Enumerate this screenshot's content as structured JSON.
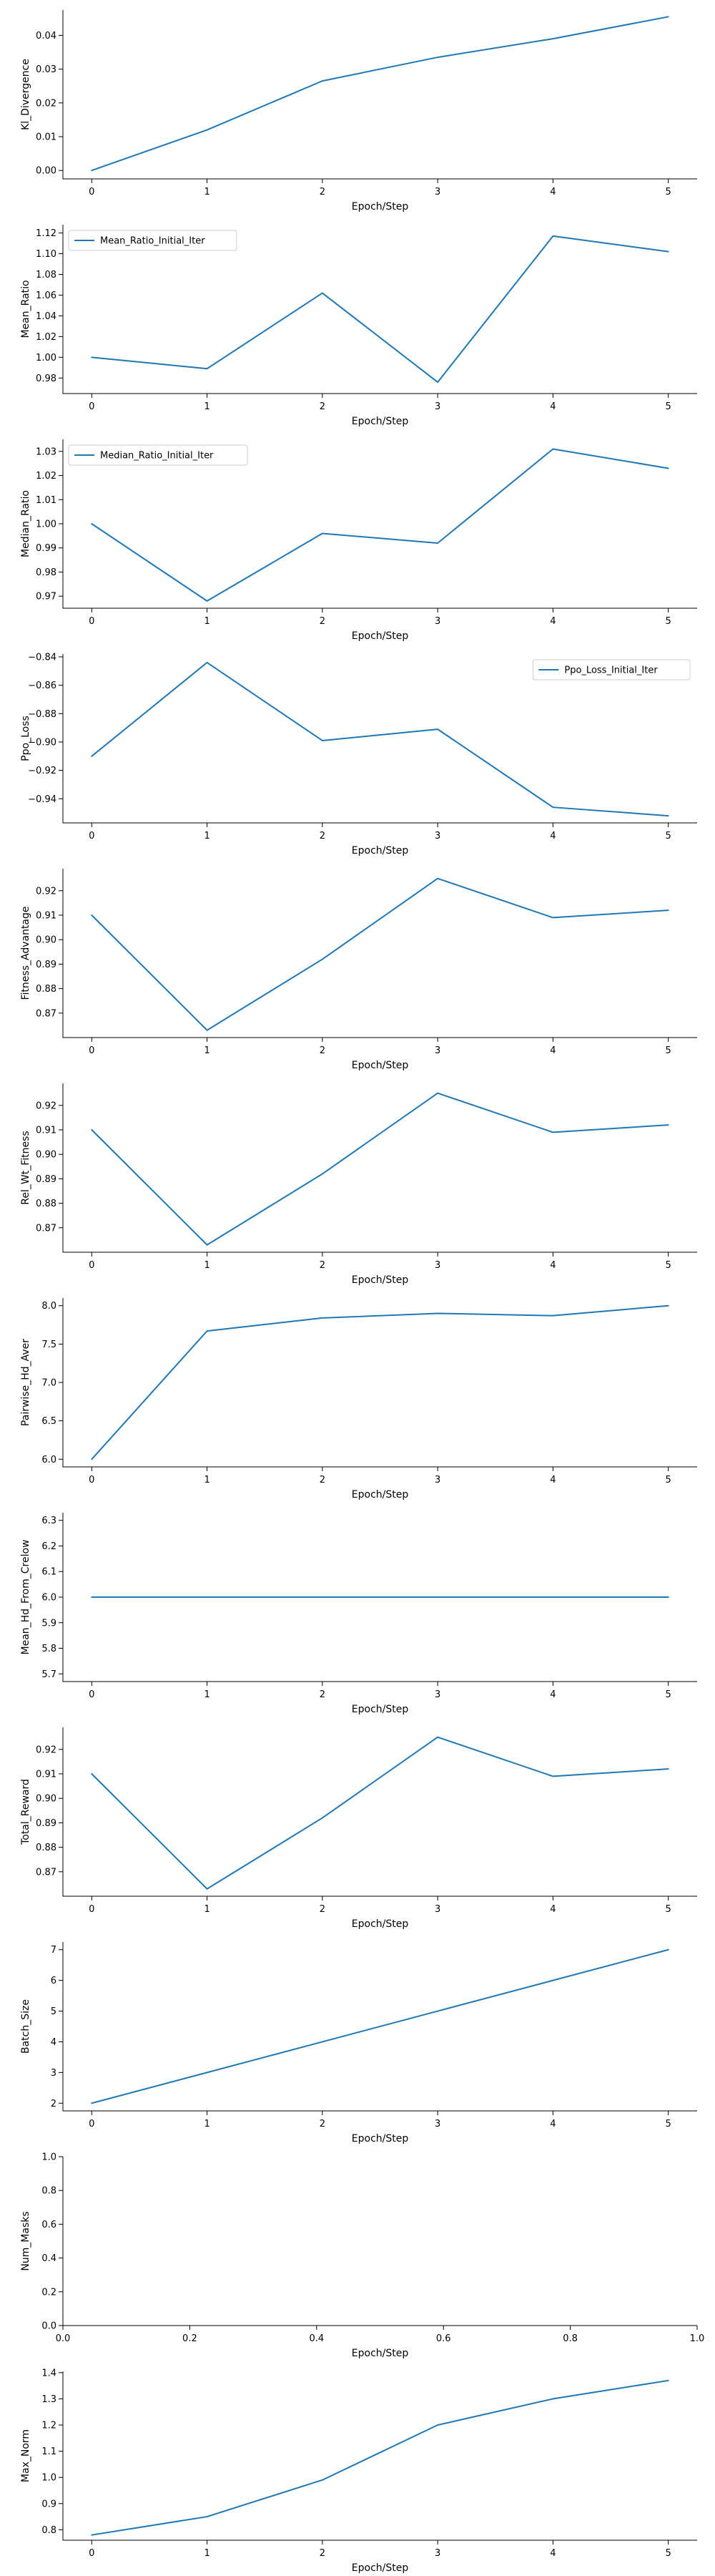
{
  "chart_data": [
    {
      "type": "line",
      "xlabel": "Epoch/Step",
      "ylabel": "Kl_Divergence",
      "x": [
        0,
        1,
        2,
        3,
        4,
        5
      ],
      "xlim": [
        -0.25,
        5.25
      ],
      "ylim": [
        -0.0025,
        0.0475
      ],
      "yticks": [
        "0.00",
        "0.01",
        "0.02",
        "0.03",
        "0.04"
      ],
      "ytick_values": [
        0,
        0.01,
        0.02,
        0.03,
        0.04
      ],
      "series": [
        {
          "name": "",
          "values": [
            0.0,
            0.012,
            0.0265,
            0.0335,
            0.039,
            0.0455
          ]
        }
      ],
      "legend": null
    },
    {
      "type": "line",
      "xlabel": "Epoch/Step",
      "ylabel": "Mean_Ratio",
      "x": [
        0,
        1,
        2,
        3,
        4,
        5
      ],
      "xlim": [
        -0.25,
        5.25
      ],
      "ylim": [
        0.965,
        1.128
      ],
      "yticks": [
        "0.98",
        "1.00",
        "1.02",
        "1.04",
        "1.06",
        "1.08",
        "1.10",
        "1.12"
      ],
      "ytick_values": [
        0.98,
        1.0,
        1.02,
        1.04,
        1.06,
        1.08,
        1.1,
        1.12
      ],
      "series": [
        {
          "name": "Mean_Ratio_Initial_Iter",
          "values": [
            1.0,
            0.989,
            1.062,
            0.976,
            1.117,
            1.102
          ]
        }
      ],
      "legend": "top-left"
    },
    {
      "type": "line",
      "xlabel": "Epoch/Step",
      "ylabel": "Median_Ratio",
      "x": [
        0,
        1,
        2,
        3,
        4,
        5
      ],
      "xlim": [
        -0.25,
        5.25
      ],
      "ylim": [
        0.965,
        1.035
      ],
      "yticks": [
        "0.97",
        "0.98",
        "0.99",
        "1.00",
        "1.01",
        "1.02",
        "1.03"
      ],
      "ytick_values": [
        0.97,
        0.98,
        0.99,
        1.0,
        1.01,
        1.02,
        1.03
      ],
      "series": [
        {
          "name": "Median_Ratio_Initial_Iter",
          "values": [
            1.0,
            0.968,
            0.996,
            0.992,
            1.031,
            1.023
          ]
        }
      ],
      "legend": "top-left"
    },
    {
      "type": "line",
      "xlabel": "Epoch/Step",
      "ylabel": "Ppo_Loss",
      "x": [
        0,
        1,
        2,
        3,
        4,
        5
      ],
      "xlim": [
        -0.25,
        5.25
      ],
      "ylim": [
        -0.957,
        -0.838
      ],
      "yticks": [
        "−0.94",
        "−0.92",
        "−0.90",
        "−0.88",
        "−0.86",
        "−0.84"
      ],
      "ytick_values": [
        -0.94,
        -0.92,
        -0.9,
        -0.88,
        -0.86,
        -0.84
      ],
      "series": [
        {
          "name": "Ppo_Loss_Initial_Iter",
          "values": [
            -0.91,
            -0.844,
            -0.899,
            -0.891,
            -0.946,
            -0.952
          ]
        }
      ],
      "legend": "top-right"
    },
    {
      "type": "line",
      "xlabel": "Epoch/Step",
      "ylabel": "Fitness_Advantage",
      "x": [
        0,
        1,
        2,
        3,
        4,
        5
      ],
      "xlim": [
        -0.25,
        5.25
      ],
      "ylim": [
        0.86,
        0.929
      ],
      "yticks": [
        "0.87",
        "0.88",
        "0.89",
        "0.90",
        "0.91",
        "0.92"
      ],
      "ytick_values": [
        0.87,
        0.88,
        0.89,
        0.9,
        0.91,
        0.92
      ],
      "series": [
        {
          "name": "",
          "values": [
            0.91,
            0.863,
            0.892,
            0.925,
            0.909,
            0.912
          ]
        }
      ],
      "legend": null
    },
    {
      "type": "line",
      "xlabel": "Epoch/Step",
      "ylabel": "Rel_Wt_Fitness",
      "x": [
        0,
        1,
        2,
        3,
        4,
        5
      ],
      "xlim": [
        -0.25,
        5.25
      ],
      "ylim": [
        0.86,
        0.929
      ],
      "yticks": [
        "0.87",
        "0.88",
        "0.89",
        "0.90",
        "0.91",
        "0.92"
      ],
      "ytick_values": [
        0.87,
        0.88,
        0.89,
        0.9,
        0.91,
        0.92
      ],
      "series": [
        {
          "name": "",
          "values": [
            0.91,
            0.863,
            0.892,
            0.925,
            0.909,
            0.912
          ]
        }
      ],
      "legend": null
    },
    {
      "type": "line",
      "xlabel": "Epoch/Step",
      "ylabel": "Pairwise_Hd_Aver",
      "x": [
        0,
        1,
        2,
        3,
        4,
        5
      ],
      "xlim": [
        -0.25,
        5.25
      ],
      "ylim": [
        5.9,
        8.1
      ],
      "yticks": [
        "6.0",
        "6.5",
        "7.0",
        "7.5",
        "8.0"
      ],
      "ytick_values": [
        6.0,
        6.5,
        7.0,
        7.5,
        8.0
      ],
      "series": [
        {
          "name": "",
          "values": [
            6.0,
            7.67,
            7.84,
            7.9,
            7.87,
            8.0
          ]
        }
      ],
      "legend": null
    },
    {
      "type": "line",
      "xlabel": "Epoch/Step",
      "ylabel": "Mean_Hd_From_Crelow",
      "x": [
        0,
        1,
        2,
        3,
        4,
        5
      ],
      "xlim": [
        -0.25,
        5.25
      ],
      "ylim": [
        5.67,
        6.33
      ],
      "yticks": [
        "5.7",
        "5.8",
        "5.9",
        "6.0",
        "6.1",
        "6.2",
        "6.3"
      ],
      "ytick_values": [
        5.7,
        5.8,
        5.9,
        6.0,
        6.1,
        6.2,
        6.3
      ],
      "series": [
        {
          "name": "",
          "values": [
            6.0,
            6.0,
            6.0,
            6.0,
            6.0,
            6.0
          ]
        }
      ],
      "legend": null
    },
    {
      "type": "line",
      "xlabel": "Epoch/Step",
      "ylabel": "Total_Reward",
      "x": [
        0,
        1,
        2,
        3,
        4,
        5
      ],
      "xlim": [
        -0.25,
        5.25
      ],
      "ylim": [
        0.86,
        0.929
      ],
      "yticks": [
        "0.87",
        "0.88",
        "0.89",
        "0.90",
        "0.91",
        "0.92"
      ],
      "ytick_values": [
        0.87,
        0.88,
        0.89,
        0.9,
        0.91,
        0.92
      ],
      "series": [
        {
          "name": "",
          "values": [
            0.91,
            0.863,
            0.892,
            0.925,
            0.909,
            0.912
          ]
        }
      ],
      "legend": null
    },
    {
      "type": "line",
      "xlabel": "Epoch/Step",
      "ylabel": "Batch_Size",
      "x": [
        0,
        1,
        2,
        3,
        4,
        5
      ],
      "xlim": [
        -0.25,
        5.25
      ],
      "ylim": [
        1.75,
        7.25
      ],
      "yticks": [
        "2",
        "3",
        "4",
        "5",
        "6",
        "7"
      ],
      "ytick_values": [
        2,
        3,
        4,
        5,
        6,
        7
      ],
      "series": [
        {
          "name": "",
          "values": [
            2,
            3,
            4,
            5,
            6,
            7
          ]
        }
      ],
      "legend": null
    },
    {
      "type": "line",
      "xlabel": "Epoch/Step",
      "ylabel": "Num_Masks",
      "x": [],
      "xlim": [
        0,
        1
      ],
      "ylim": [
        0,
        1
      ],
      "xticks": [
        "0.0",
        "0.2",
        "0.4",
        "0.6",
        "0.8",
        "1.0"
      ],
      "xtick_values": [
        0,
        0.2,
        0.4,
        0.6,
        0.8,
        1.0
      ],
      "yticks": [
        "0.0",
        "0.2",
        "0.4",
        "0.6",
        "0.8",
        "1.0"
      ],
      "ytick_values": [
        0,
        0.2,
        0.4,
        0.6,
        0.8,
        1.0
      ],
      "series": [],
      "legend": null
    },
    {
      "type": "line",
      "xlabel": "Epoch/Step",
      "ylabel": "Max_Norm",
      "x": [
        0,
        1,
        2,
        3,
        4,
        5
      ],
      "xlim": [
        -0.25,
        5.25
      ],
      "ylim": [
        0.76,
        1.405
      ],
      "yticks": [
        "0.8",
        "0.9",
        "1.0",
        "1.1",
        "1.2",
        "1.3",
        "1.4"
      ],
      "ytick_values": [
        0.8,
        0.9,
        1.0,
        1.1,
        1.2,
        1.3,
        1.4
      ],
      "series": [
        {
          "name": "",
          "values": [
            0.78,
            0.85,
            0.99,
            1.2,
            1.3,
            1.37
          ]
        }
      ],
      "legend": null
    }
  ],
  "colors": {
    "series": "#1f77b4",
    "axis": "#000000"
  }
}
